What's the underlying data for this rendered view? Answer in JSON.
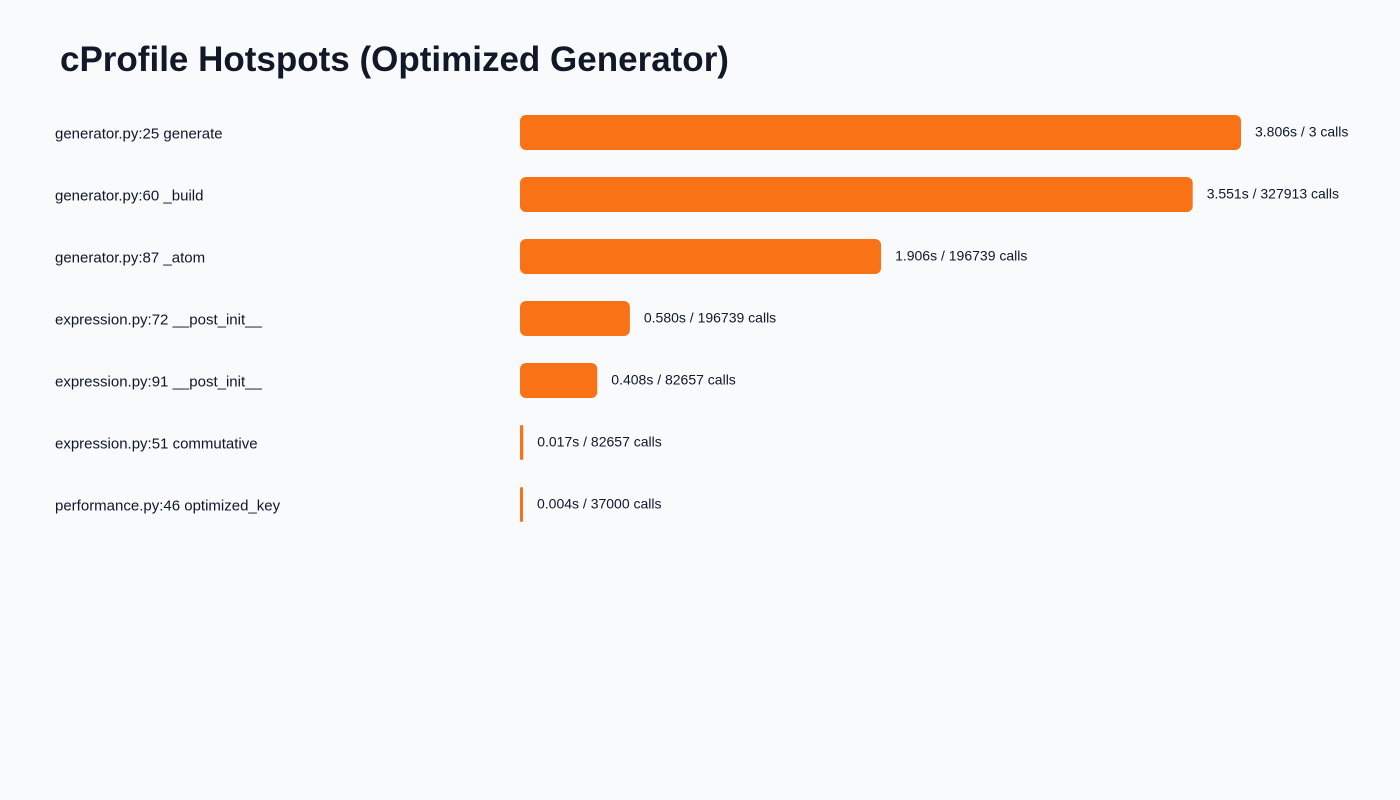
{
  "chart_data": {
    "type": "bar",
    "orientation": "horizontal",
    "title": "cProfile Hotspots (Optimized Generator)",
    "xlabel": "",
    "ylabel": "",
    "grid": false,
    "legend": "none",
    "bar_color": "#f97316",
    "categories": [
      "generator.py:25 generate",
      "generator.py:60 _build",
      "generator.py:87 _atom",
      "expression.py:72 __post_init__",
      "expression.py:91 __post_init__",
      "expression.py:51 commutative",
      "performance.py:46 optimized_key"
    ],
    "values": [
      3.806,
      3.551,
      1.906,
      0.58,
      0.408,
      0.017,
      0.004
    ],
    "data_labels": [
      "3.806s / 3 calls",
      "3.551s / 327913 calls",
      "1.906s / 196739 calls",
      "0.580s / 196739 calls",
      "0.408s / 82657 calls",
      "0.017s / 82657 calls",
      "0.004s / 37000 calls"
    ]
  }
}
